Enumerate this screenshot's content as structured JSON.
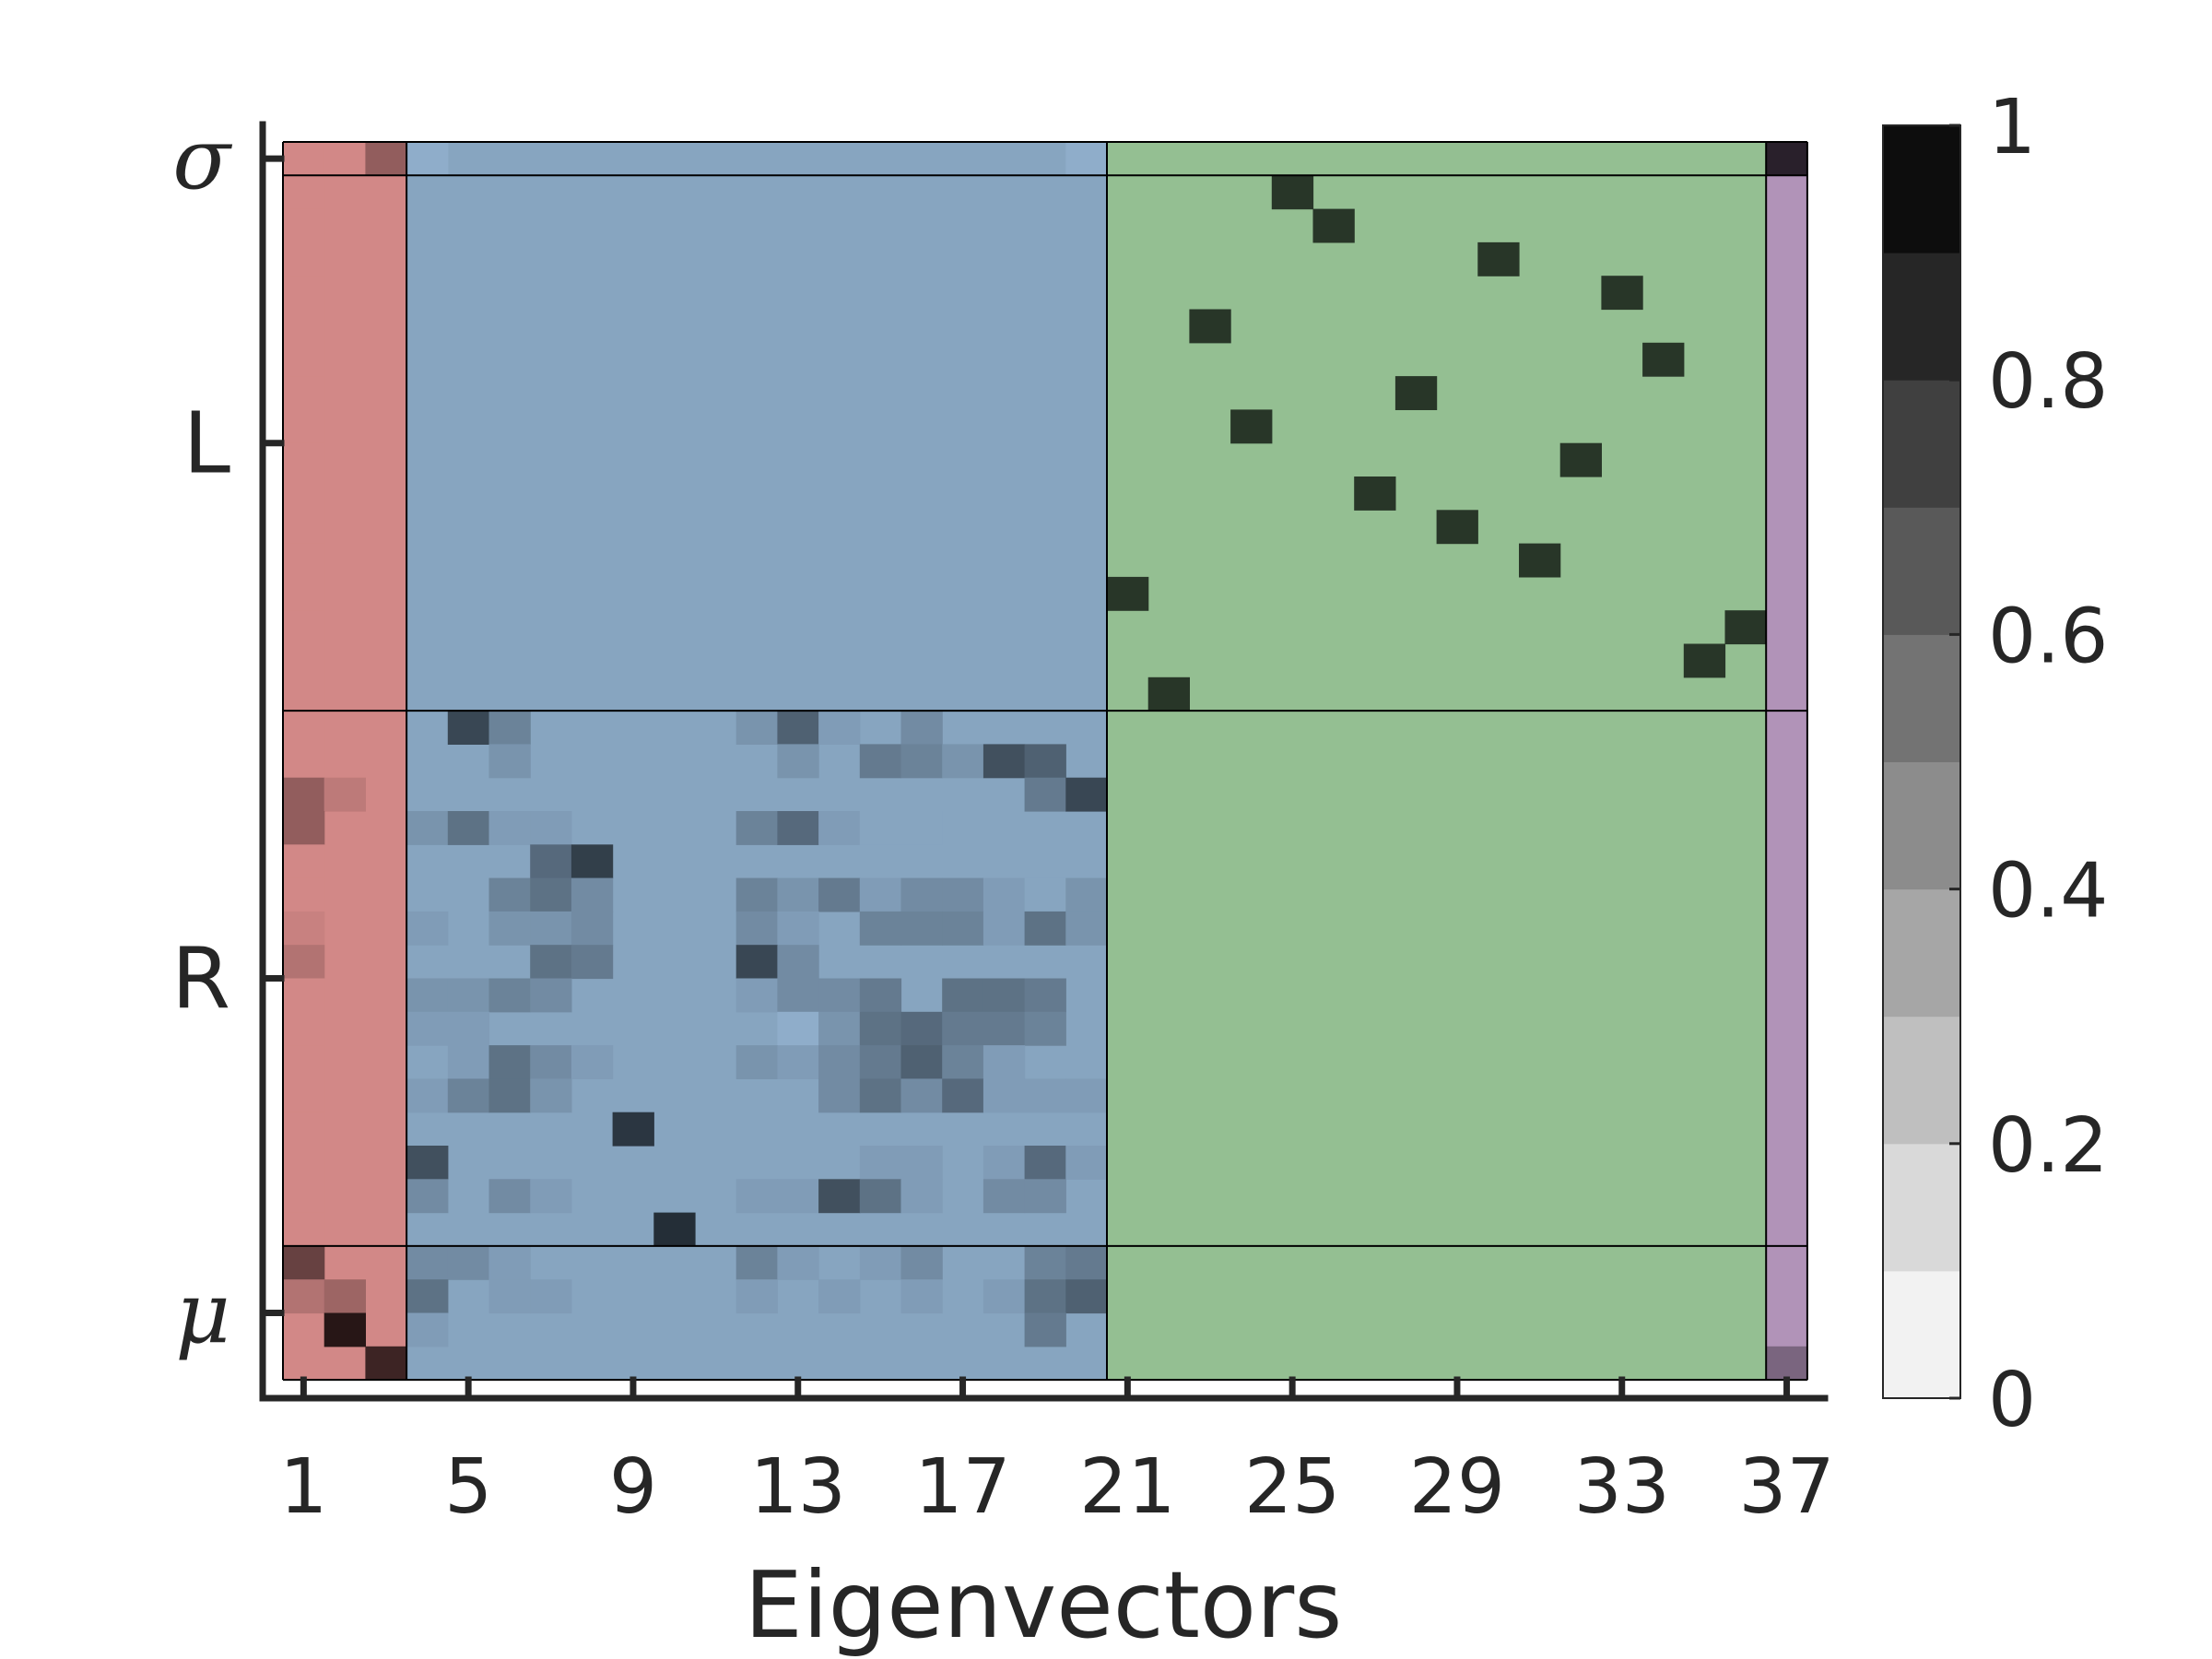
{
  "chart_data": {
    "type": "heatmap",
    "xlabel": "Eigenvectors",
    "x_ticks": [
      "1",
      "5",
      "9",
      "13",
      "17",
      "21",
      "25",
      "29",
      "33",
      "37"
    ],
    "x_tick_values": [
      1,
      5,
      9,
      13,
      17,
      21,
      25,
      29,
      33,
      37
    ],
    "x_range": [
      1,
      37
    ],
    "n_rows": 37,
    "row_groups": [
      {
        "label": "σ",
        "rows": [
          1,
          1
        ],
        "italic": true
      },
      {
        "label": "L",
        "rows": [
          2,
          17
        ],
        "italic": false
      },
      {
        "label": "R",
        "rows": [
          18,
          33
        ],
        "italic": false
      },
      {
        "label": "μ",
        "rows": [
          34,
          37
        ],
        "italic": true
      }
    ],
    "column_groups": [
      {
        "cols": [
          1,
          3
        ],
        "color": "#ee7d7c"
      },
      {
        "cols": [
          4,
          20
        ],
        "color": "#7ca9d3"
      },
      {
        "cols": [
          21,
          36
        ],
        "color": "#8fd18c"
      },
      {
        "cols": [
          37,
          37
        ],
        "color": "#bb8dc6"
      }
    ],
    "colorbar": {
      "ticks": [
        "0",
        "0.2",
        "0.4",
        "0.6",
        "0.8",
        "1"
      ],
      "tick_values": [
        0,
        0.2,
        0.4,
        0.6,
        0.8,
        1
      ],
      "levels": 10
    },
    "cells": [
      [
        1,
        1,
        0.15
      ],
      [
        1,
        2,
        0.15
      ],
      [
        1,
        3,
        0.45
      ],
      [
        2,
        1,
        0.15
      ],
      [
        3,
        1,
        0.15
      ],
      [
        4,
        1,
        0.15
      ],
      [
        5,
        1,
        0.15
      ],
      [
        6,
        1,
        0.15
      ],
      [
        7,
        1,
        0.15
      ],
      [
        8,
        1,
        0.15
      ],
      [
        9,
        1,
        0.15
      ],
      [
        10,
        1,
        0.15
      ],
      [
        11,
        1,
        0.15
      ],
      [
        12,
        1,
        0.15
      ],
      [
        13,
        1,
        0.15
      ],
      [
        14,
        1,
        0.15
      ],
      [
        15,
        1,
        0.15
      ],
      [
        16,
        1,
        0.15
      ],
      [
        17,
        1,
        0.15
      ],
      [
        18,
        1,
        0.15
      ],
      [
        19,
        1,
        0.15
      ],
      [
        20,
        1,
        0.45
      ],
      [
        20,
        2,
        0.25
      ],
      [
        21,
        1,
        0.45
      ],
      [
        22,
        1,
        0.15
      ],
      [
        23,
        1,
        0.15
      ],
      [
        24,
        1,
        0.2
      ],
      [
        25,
        1,
        0.3
      ],
      [
        26,
        1,
        0.15
      ],
      [
        27,
        1,
        0.15
      ],
      [
        28,
        1,
        0.15
      ],
      [
        29,
        1,
        0.15
      ],
      [
        30,
        1,
        0.15
      ],
      [
        31,
        1,
        0.15
      ],
      [
        32,
        1,
        0.15
      ],
      [
        33,
        1,
        0.15
      ],
      [
        34,
        1,
        0.65
      ],
      [
        35,
        1,
        0.3
      ],
      [
        35,
        2,
        0.4
      ],
      [
        36,
        2,
        0.95
      ],
      [
        37,
        3,
        0.85
      ],
      [
        1,
        4,
        0.1
      ],
      [
        1,
        20,
        0.1
      ],
      [
        18,
        5,
        0.7
      ],
      [
        18,
        6,
        0.35
      ],
      [
        18,
        12,
        0.25
      ],
      [
        18,
        13,
        0.55
      ],
      [
        18,
        14,
        0.2
      ],
      [
        18,
        16,
        0.3
      ],
      [
        19,
        6,
        0.25
      ],
      [
        19,
        13,
        0.25
      ],
      [
        19,
        15,
        0.4
      ],
      [
        19,
        16,
        0.35
      ],
      [
        19,
        17,
        0.25
      ],
      [
        19,
        18,
        0.65
      ],
      [
        19,
        19,
        0.55
      ],
      [
        20,
        19,
        0.4
      ],
      [
        20,
        20,
        0.7
      ],
      [
        21,
        4,
        0.25
      ],
      [
        21,
        5,
        0.45
      ],
      [
        21,
        6,
        0.2
      ],
      [
        21,
        7,
        0.2
      ],
      [
        21,
        12,
        0.35
      ],
      [
        21,
        13,
        0.5
      ],
      [
        21,
        14,
        0.2
      ],
      [
        21,
        15,
        0.15
      ],
      [
        21,
        16,
        0.15
      ],
      [
        22,
        7,
        0.5
      ],
      [
        22,
        8,
        0.75
      ],
      [
        23,
        6,
        0.35
      ],
      [
        23,
        7,
        0.45
      ],
      [
        23,
        8,
        0.3
      ],
      [
        23,
        12,
        0.35
      ],
      [
        23,
        13,
        0.25
      ],
      [
        23,
        14,
        0.4
      ],
      [
        23,
        15,
        0.2
      ],
      [
        23,
        16,
        0.3
      ],
      [
        23,
        17,
        0.3
      ],
      [
        23,
        18,
        0.2
      ],
      [
        23,
        19,
        0.15
      ],
      [
        23,
        20,
        0.25
      ],
      [
        24,
        4,
        0.2
      ],
      [
        24,
        6,
        0.25
      ],
      [
        24,
        7,
        0.25
      ],
      [
        24,
        8,
        0.3
      ],
      [
        24,
        12,
        0.3
      ],
      [
        24,
        13,
        0.2
      ],
      [
        24,
        15,
        0.35
      ],
      [
        24,
        16,
        0.35
      ],
      [
        24,
        17,
        0.35
      ],
      [
        24,
        18,
        0.2
      ],
      [
        24,
        19,
        0.45
      ],
      [
        24,
        20,
        0.25
      ],
      [
        25,
        7,
        0.45
      ],
      [
        25,
        8,
        0.4
      ],
      [
        25,
        12,
        0.7
      ],
      [
        25,
        13,
        0.3
      ],
      [
        26,
        4,
        0.25
      ],
      [
        26,
        5,
        0.25
      ],
      [
        26,
        6,
        0.35
      ],
      [
        26,
        7,
        0.3
      ],
      [
        26,
        12,
        0.2
      ],
      [
        26,
        13,
        0.3
      ],
      [
        26,
        14,
        0.3
      ],
      [
        26,
        15,
        0.4
      ],
      [
        26,
        17,
        0.45
      ],
      [
        26,
        18,
        0.45
      ],
      [
        26,
        19,
        0.4
      ],
      [
        27,
        4,
        0.2
      ],
      [
        27,
        5,
        0.2
      ],
      [
        27,
        13,
        0.1
      ],
      [
        27,
        14,
        0.25
      ],
      [
        27,
        15,
        0.45
      ],
      [
        27,
        16,
        0.5
      ],
      [
        27,
        17,
        0.4
      ],
      [
        27,
        18,
        0.4
      ],
      [
        27,
        19,
        0.35
      ],
      [
        28,
        5,
        0.2
      ],
      [
        28,
        6,
        0.45
      ],
      [
        28,
        7,
        0.3
      ],
      [
        28,
        8,
        0.2
      ],
      [
        28,
        12,
        0.25
      ],
      [
        28,
        13,
        0.2
      ],
      [
        28,
        14,
        0.3
      ],
      [
        28,
        15,
        0.4
      ],
      [
        28,
        16,
        0.55
      ],
      [
        28,
        17,
        0.35
      ],
      [
        28,
        18,
        0.2
      ],
      [
        29,
        4,
        0.2
      ],
      [
        29,
        5,
        0.35
      ],
      [
        29,
        6,
        0.45
      ],
      [
        29,
        7,
        0.25
      ],
      [
        29,
        14,
        0.3
      ],
      [
        29,
        15,
        0.45
      ],
      [
        29,
        16,
        0.3
      ],
      [
        29,
        17,
        0.5
      ],
      [
        29,
        18,
        0.2
      ],
      [
        29,
        19,
        0.2
      ],
      [
        29,
        20,
        0.2
      ],
      [
        30,
        9,
        0.8
      ],
      [
        31,
        4,
        0.65
      ],
      [
        31,
        15,
        0.2
      ],
      [
        31,
        16,
        0.2
      ],
      [
        31,
        18,
        0.2
      ],
      [
        31,
        19,
        0.5
      ],
      [
        31,
        20,
        0.2
      ],
      [
        32,
        4,
        0.3
      ],
      [
        32,
        6,
        0.3
      ],
      [
        32,
        7,
        0.2
      ],
      [
        32,
        12,
        0.2
      ],
      [
        32,
        13,
        0.2
      ],
      [
        32,
        14,
        0.65
      ],
      [
        32,
        15,
        0.45
      ],
      [
        32,
        16,
        0.2
      ],
      [
        32,
        18,
        0.3
      ],
      [
        32,
        19,
        0.3
      ],
      [
        33,
        10,
        0.85
      ],
      [
        34,
        4,
        0.3
      ],
      [
        34,
        5,
        0.3
      ],
      [
        34,
        6,
        0.2
      ],
      [
        34,
        12,
        0.35
      ],
      [
        34,
        13,
        0.2
      ],
      [
        34,
        15,
        0.2
      ],
      [
        34,
        16,
        0.3
      ],
      [
        34,
        19,
        0.35
      ],
      [
        34,
        20,
        0.4
      ],
      [
        35,
        4,
        0.45
      ],
      [
        35,
        6,
        0.2
      ],
      [
        35,
        7,
        0.2
      ],
      [
        35,
        12,
        0.2
      ],
      [
        35,
        14,
        0.2
      ],
      [
        35,
        16,
        0.2
      ],
      [
        35,
        18,
        0.2
      ],
      [
        35,
        19,
        0.45
      ],
      [
        35,
        20,
        0.55
      ],
      [
        36,
        4,
        0.2
      ],
      [
        36,
        19,
        0.4
      ],
      [
        2,
        25,
        0.85
      ],
      [
        3,
        26,
        0.85
      ],
      [
        4,
        30,
        0.85
      ],
      [
        5,
        33,
        0.85
      ],
      [
        6,
        23,
        0.85
      ],
      [
        7,
        34,
        0.85
      ],
      [
        8,
        28,
        0.85
      ],
      [
        9,
        24,
        0.85
      ],
      [
        10,
        32,
        0.85
      ],
      [
        11,
        27,
        0.85
      ],
      [
        12,
        29,
        0.85
      ],
      [
        13,
        31,
        0.85
      ],
      [
        14,
        21,
        0.85
      ],
      [
        15,
        36,
        0.85
      ],
      [
        16,
        35,
        0.85
      ],
      [
        17,
        22,
        0.85
      ],
      [
        1,
        37,
        0.9
      ],
      [
        37,
        37,
        0.45
      ]
    ]
  }
}
